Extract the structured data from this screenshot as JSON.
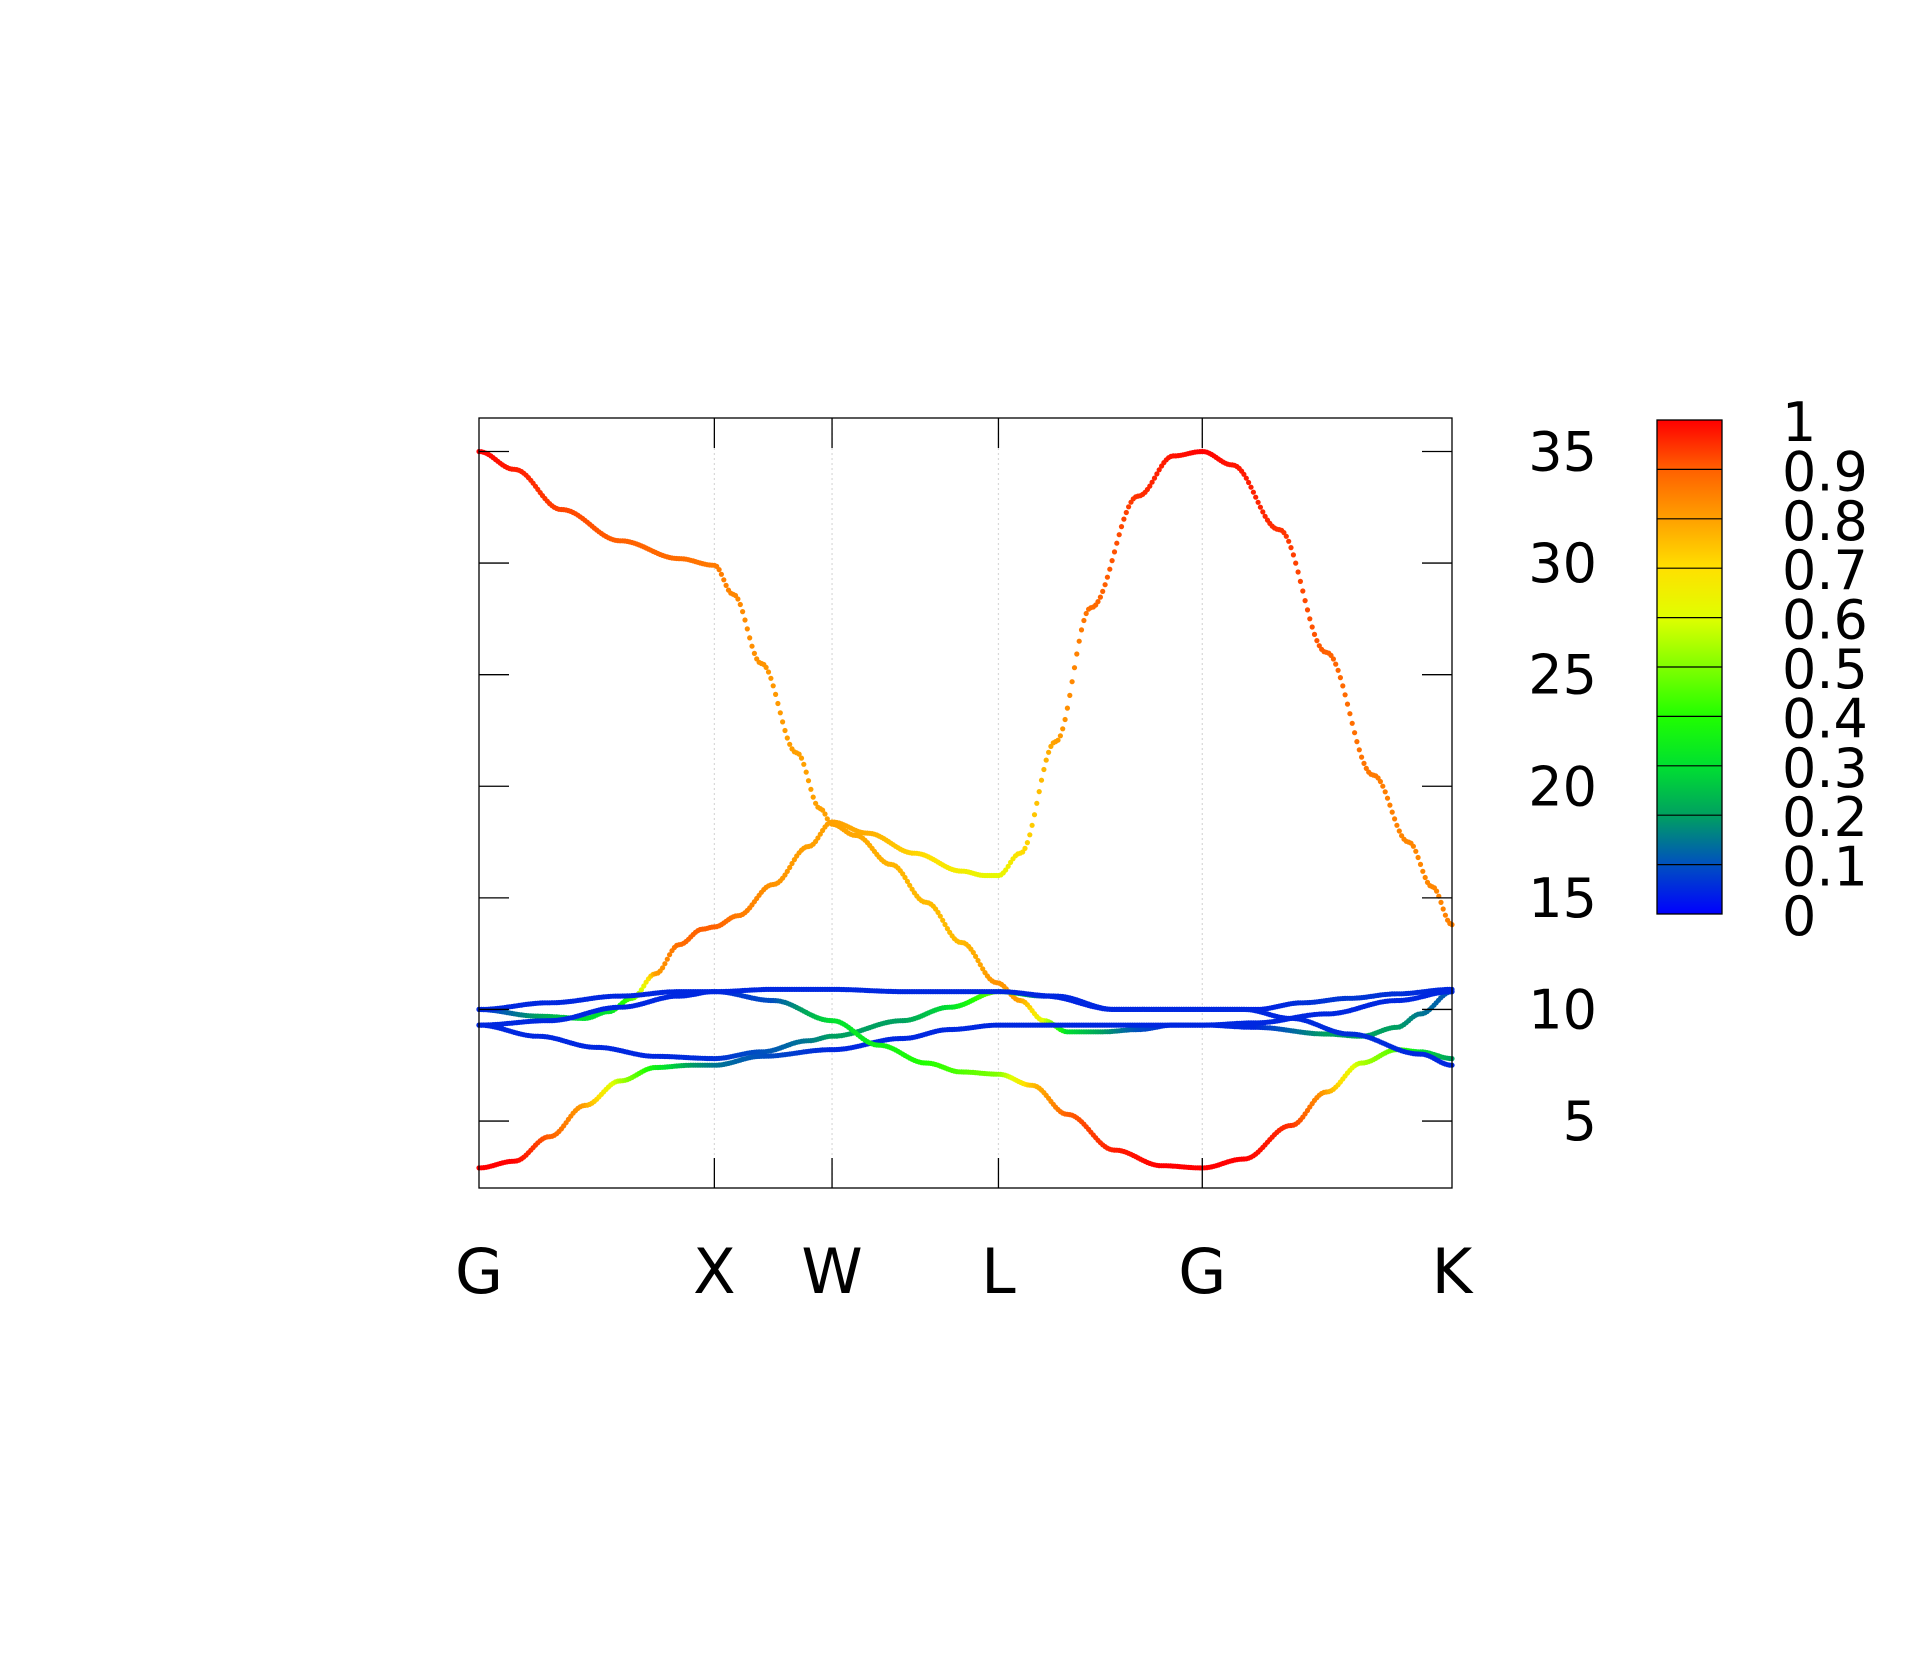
{
  "chart_data": {
    "type": "scatter",
    "title": "",
    "xlabel": "",
    "ylabel": "",
    "ylim": [
      2,
      36.5
    ],
    "y_ticks": [
      5,
      10,
      15,
      20,
      25,
      30,
      35
    ],
    "y_tick_labels": [
      "5",
      "10",
      "15",
      "20",
      "25",
      "30",
      "35"
    ],
    "y_axis_side": "right",
    "k_points": [
      {
        "label": "G",
        "x": 0.0
      },
      {
        "label": "X",
        "x": 1.0
      },
      {
        "label": "W",
        "x": 1.5
      },
      {
        "label": "L",
        "x": 2.207
      },
      {
        "label": "G",
        "x": 3.073
      },
      {
        "label": "K",
        "x": 4.134
      }
    ],
    "grid": "vertical dotted lines at k-points",
    "colorbar": {
      "range": [
        0,
        1
      ],
      "ticks": [
        "0",
        "0.1",
        "0.2",
        "0.3",
        "0.4",
        "0.5",
        "0.6",
        "0.7",
        "0.8",
        "0.9",
        "1"
      ],
      "palette": [
        "#0000ff",
        "#0050c0",
        "#00a060",
        "#00e030",
        "#20ff00",
        "#80ff00",
        "#e0ff00",
        "#ffe000",
        "#ffa000",
        "#ff6000",
        "#ff0000"
      ]
    },
    "bands": [
      {
        "points": [
          [
            0,
            35,
            1
          ],
          [
            0.15,
            34.2,
            0.97
          ],
          [
            0.35,
            32.4,
            0.93
          ],
          [
            0.6,
            31.0,
            0.9
          ],
          [
            0.85,
            30.2,
            0.88
          ],
          [
            1.0,
            29.9,
            0.86
          ],
          [
            1.08,
            28.6,
            0.84
          ],
          [
            1.2,
            25.5,
            0.82
          ],
          [
            1.35,
            21.5,
            0.8
          ],
          [
            1.45,
            19.0,
            0.8
          ],
          [
            1.5,
            18.3,
            0.8
          ],
          [
            1.6,
            17.8,
            0.79
          ],
          [
            1.75,
            16.5,
            0.77
          ],
          [
            1.9,
            14.8,
            0.76
          ],
          [
            2.05,
            13.0,
            0.76
          ],
          [
            2.2,
            11.2,
            0.82
          ],
          [
            2.3,
            10.4,
            0.8
          ],
          [
            2.4,
            9.5,
            0.6
          ],
          [
            2.5,
            9.0,
            0.3
          ],
          [
            2.65,
            9.0,
            0.2
          ],
          [
            2.8,
            9.1,
            0.1
          ],
          [
            2.95,
            9.3,
            0.05
          ],
          [
            3.073,
            9.3,
            0.05
          ],
          [
            3.3,
            9.2,
            0.05
          ],
          [
            3.6,
            8.9,
            0.2
          ],
          [
            3.75,
            8.8,
            0.2
          ],
          [
            3.9,
            9.2,
            0.2
          ],
          [
            4.0,
            9.8,
            0.15
          ],
          [
            4.134,
            10.8,
            0.1
          ]
        ]
      },
      {
        "points": [
          [
            0,
            9.3,
            0.05
          ],
          [
            0.25,
            8.8,
            0.05
          ],
          [
            0.5,
            8.3,
            0.05
          ],
          [
            0.75,
            7.9,
            0.05
          ],
          [
            1.0,
            7.8,
            0.06
          ],
          [
            1.2,
            8.1,
            0.1
          ],
          [
            1.4,
            8.6,
            0.15
          ],
          [
            1.5,
            8.8,
            0.2
          ],
          [
            1.8,
            9.5,
            0.2
          ],
          [
            2.0,
            10.1,
            0.3
          ],
          [
            2.207,
            10.8,
            0.5
          ],
          [
            2.4,
            10.6,
            0.05
          ],
          [
            2.7,
            10.0,
            0.04
          ],
          [
            3.073,
            10.0,
            0.04
          ],
          [
            3.3,
            10.0,
            0.04
          ],
          [
            3.5,
            10.3,
            0.06
          ],
          [
            3.7,
            10.5,
            0.07
          ],
          [
            3.9,
            10.7,
            0.06
          ],
          [
            4.134,
            10.9,
            0.05
          ]
        ]
      },
      {
        "points": [
          [
            0,
            10.0,
            0.05
          ],
          [
            0.25,
            9.7,
            0.2
          ],
          [
            0.45,
            9.6,
            0.3
          ],
          [
            0.55,
            9.9,
            0.3
          ],
          [
            0.65,
            10.5,
            0.45
          ],
          [
            0.75,
            11.6,
            0.8
          ],
          [
            0.85,
            12.9,
            0.88
          ],
          [
            0.95,
            13.6,
            0.9
          ],
          [
            1.0,
            13.7,
            0.9
          ],
          [
            1.1,
            14.2,
            0.86
          ],
          [
            1.25,
            15.6,
            0.82
          ],
          [
            1.4,
            17.3,
            0.8
          ],
          [
            1.5,
            18.4,
            0.8
          ],
          [
            1.65,
            17.9,
            0.78
          ],
          [
            1.85,
            17.0,
            0.72
          ],
          [
            2.05,
            16.2,
            0.66
          ],
          [
            2.15,
            16.0,
            0.63
          ],
          [
            2.207,
            16.0,
            0.62
          ],
          [
            2.3,
            17.0,
            0.7
          ],
          [
            2.45,
            22.0,
            0.8
          ],
          [
            2.6,
            28.0,
            0.88
          ],
          [
            2.8,
            33.0,
            0.95
          ],
          [
            2.95,
            34.8,
            0.98
          ],
          [
            3.073,
            35.0,
            1
          ],
          [
            3.2,
            34.4,
            0.98
          ],
          [
            3.4,
            31.5,
            0.95
          ],
          [
            3.6,
            26.0,
            0.9
          ],
          [
            3.8,
            20.5,
            0.86
          ],
          [
            3.95,
            17.5,
            0.84
          ],
          [
            4.05,
            15.5,
            0.84
          ],
          [
            4.134,
            13.8,
            0.85
          ]
        ]
      },
      {
        "points": [
          [
            0,
            2.9,
            1
          ],
          [
            0.15,
            3.2,
            1
          ],
          [
            0.3,
            4.3,
            0.9
          ],
          [
            0.45,
            5.7,
            0.8
          ],
          [
            0.6,
            6.8,
            0.55
          ],
          [
            0.75,
            7.4,
            0.35
          ],
          [
            0.9,
            7.5,
            0.2
          ],
          [
            1.0,
            7.5,
            0.15
          ],
          [
            1.2,
            7.9,
            0.1
          ],
          [
            1.5,
            8.2,
            0.05
          ],
          [
            1.8,
            8.7,
            0.05
          ],
          [
            2.0,
            9.1,
            0.05
          ],
          [
            2.207,
            9.3,
            0.05
          ],
          [
            2.5,
            9.3,
            0.05
          ],
          [
            3.073,
            9.3,
            0.05
          ],
          [
            3.3,
            9.4,
            0.05
          ],
          [
            3.6,
            9.8,
            0.05
          ],
          [
            3.9,
            10.4,
            0.05
          ],
          [
            4.134,
            10.8,
            0.05
          ]
        ]
      },
      {
        "points": [
          [
            0,
            10.0,
            0.05
          ],
          [
            0.3,
            10.3,
            0.05
          ],
          [
            0.6,
            10.6,
            0.05
          ],
          [
            0.85,
            10.8,
            0.05
          ],
          [
            1.0,
            10.8,
            0.05
          ],
          [
            1.25,
            10.4,
            0.1
          ],
          [
            1.5,
            9.5,
            0.3
          ],
          [
            1.7,
            8.4,
            0.35
          ],
          [
            1.9,
            7.6,
            0.4
          ],
          [
            2.05,
            7.2,
            0.45
          ],
          [
            2.207,
            7.1,
            0.5
          ],
          [
            2.35,
            6.6,
            0.75
          ],
          [
            2.5,
            5.3,
            0.9
          ],
          [
            2.7,
            3.7,
            0.97
          ],
          [
            2.9,
            3.0,
            1
          ],
          [
            3.073,
            2.9,
            1
          ],
          [
            3.25,
            3.3,
            1
          ],
          [
            3.45,
            4.8,
            0.95
          ],
          [
            3.6,
            6.3,
            0.8
          ],
          [
            3.75,
            7.6,
            0.55
          ],
          [
            3.9,
            8.2,
            0.45
          ],
          [
            4.0,
            8.1,
            0.3
          ],
          [
            4.134,
            7.8,
            0.2
          ]
        ]
      },
      {
        "points": [
          [
            0,
            9.3,
            0.05
          ],
          [
            0.3,
            9.5,
            0.05
          ],
          [
            0.6,
            10.1,
            0.05
          ],
          [
            0.85,
            10.6,
            0.05
          ],
          [
            1.0,
            10.8,
            0.05
          ],
          [
            1.25,
            10.9,
            0.05
          ],
          [
            1.5,
            10.9,
            0.05
          ],
          [
            1.8,
            10.8,
            0.05
          ],
          [
            2.207,
            10.8,
            0.05
          ],
          [
            2.45,
            10.6,
            0.05
          ],
          [
            2.7,
            10.0,
            0.05
          ],
          [
            3.073,
            10.0,
            0.05
          ],
          [
            3.25,
            10.0,
            0.05
          ],
          [
            3.45,
            9.6,
            0.05
          ],
          [
            3.7,
            8.9,
            0.06
          ],
          [
            4.0,
            8.0,
            0.05
          ],
          [
            4.134,
            7.5,
            0.05
          ]
        ]
      }
    ]
  }
}
